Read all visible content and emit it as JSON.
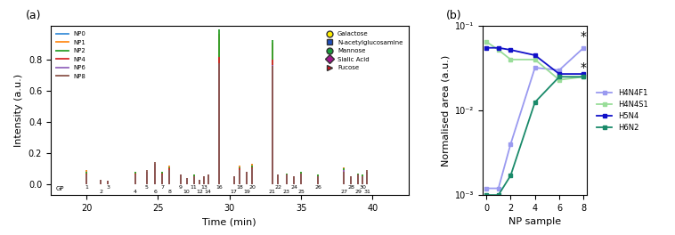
{
  "chart_data": [
    {
      "type": "stem",
      "panel_label": "(a)",
      "xlabel": "Time (min)",
      "ylabel": "Intensity (a.u.)",
      "x": [
        20.0,
        21.0,
        21.5,
        23.4,
        24.2,
        24.8,
        25.3,
        25.8,
        26.6,
        27.0,
        27.5,
        27.9,
        28.2,
        28.5,
        29.3,
        30.3,
        30.7,
        31.2,
        31.6,
        33.0,
        33.4,
        34.0,
        34.5,
        35.0,
        36.2,
        38.0,
        38.5,
        39.0,
        39.3,
        39.6
      ],
      "peak_labels": [
        "1",
        "2",
        "3",
        "4",
        "5",
        "6",
        "7",
        "8",
        "9",
        "10",
        "11",
        "12",
        "13",
        "14",
        "16",
        "17",
        "18",
        "19",
        "20",
        "21",
        "22",
        "23",
        "24",
        "25",
        "26",
        "27",
        "28",
        "29",
        "30",
        "31"
      ],
      "baseline_label": "GP",
      "series": [
        {
          "name": "NP0",
          "color": "#3a8fd9",
          "values": [
            0.09,
            0.03,
            0.02,
            0.08,
            0.07,
            0.12,
            0.08,
            0.12,
            0.05,
            0.04,
            0.06,
            0.03,
            0.05,
            0.05,
            0.96,
            0.04,
            0.12,
            0.07,
            0.13,
            0.9,
            0.05,
            0.07,
            0.05,
            0.08,
            0.06,
            0.11,
            0.05,
            0.07,
            0.06,
            0.07
          ]
        },
        {
          "name": "NP1",
          "color": "#ff8c1a",
          "values": [
            0.09,
            0.03,
            0.02,
            0.08,
            0.07,
            0.12,
            0.08,
            0.12,
            0.05,
            0.04,
            0.06,
            0.03,
            0.05,
            0.05,
            0.97,
            0.04,
            0.12,
            0.07,
            0.13,
            0.91,
            0.05,
            0.07,
            0.05,
            0.08,
            0.06,
            0.11,
            0.05,
            0.07,
            0.06,
            0.07
          ]
        },
        {
          "name": "NP2",
          "color": "#2ca02c",
          "values": [
            0.08,
            0.03,
            0.02,
            0.08,
            0.07,
            0.12,
            0.08,
            0.11,
            0.05,
            0.04,
            0.06,
            0.03,
            0.05,
            0.05,
            1.0,
            0.04,
            0.11,
            0.07,
            0.12,
            0.93,
            0.05,
            0.07,
            0.05,
            0.08,
            0.06,
            0.1,
            0.05,
            0.07,
            0.06,
            0.07
          ]
        },
        {
          "name": "NP4",
          "color": "#d62728",
          "values": [
            0.07,
            0.03,
            0.02,
            0.07,
            0.08,
            0.13,
            0.07,
            0.1,
            0.06,
            0.04,
            0.05,
            0.03,
            0.05,
            0.06,
            0.82,
            0.05,
            0.1,
            0.08,
            0.11,
            0.8,
            0.06,
            0.06,
            0.05,
            0.07,
            0.05,
            0.09,
            0.05,
            0.06,
            0.05,
            0.08
          ]
        },
        {
          "name": "NP6",
          "color": "#9467bd",
          "values": [
            0.06,
            0.03,
            0.02,
            0.06,
            0.08,
            0.13,
            0.06,
            0.09,
            0.06,
            0.04,
            0.05,
            0.03,
            0.05,
            0.06,
            0.78,
            0.05,
            0.09,
            0.08,
            0.1,
            0.77,
            0.06,
            0.06,
            0.05,
            0.07,
            0.05,
            0.09,
            0.05,
            0.06,
            0.05,
            0.08
          ]
        },
        {
          "name": "NP8",
          "color": "#8c564b",
          "values": [
            0.06,
            0.03,
            0.02,
            0.06,
            0.09,
            0.14,
            0.06,
            0.09,
            0.06,
            0.04,
            0.05,
            0.03,
            0.05,
            0.06,
            0.78,
            0.05,
            0.09,
            0.08,
            0.1,
            0.76,
            0.06,
            0.06,
            0.05,
            0.07,
            0.05,
            0.08,
            0.05,
            0.06,
            0.05,
            0.09
          ]
        }
      ],
      "xlim": [
        17.5,
        42.5
      ],
      "xticks": [
        20,
        25,
        30,
        35,
        40
      ],
      "ylim": [
        -0.07,
        1.02
      ],
      "yticks": [
        {
          "value": 0,
          "label": "0.0"
        },
        {
          "value": 0.2,
          "label": "0.2"
        },
        {
          "value": 0.4,
          "label": "0.4"
        },
        {
          "value": 0.6,
          "label": "0.6"
        },
        {
          "value": 0.8,
          "label": "0.8"
        }
      ],
      "legend": "upper left",
      "monosaccharide_key": [
        {
          "name": "Galactose",
          "color": "#ffee00",
          "marker": "circle"
        },
        {
          "name": "N-acetylglucosamine",
          "color": "#1f4fbf",
          "marker": "square"
        },
        {
          "name": "Mannose",
          "color": "#1a9a3a",
          "marker": "circle"
        },
        {
          "name": "Sialic Acid",
          "color": "#a0168c",
          "marker": "diamond"
        },
        {
          "name": "Fucose",
          "color": "#e0101a",
          "marker": "triangle"
        }
      ]
    },
    {
      "type": "line",
      "panel_label": "(b)",
      "xlabel": "NP sample",
      "ylabel": "Normalised area (a.u.)",
      "log": "y",
      "x": [
        0,
        1,
        2,
        4,
        6,
        8
      ],
      "series": [
        {
          "name": "H4N4F1",
          "color": "#9a9af0",
          "marker": "square",
          "line_style": "solid",
          "values": [
            0.0012,
            0.0012,
            0.004,
            0.032,
            0.03,
            0.055
          ]
        },
        {
          "name": "H4N4S1",
          "color": "#99dd99",
          "marker": "square",
          "line_style": "solid",
          "values": [
            0.065,
            0.052,
            0.04,
            0.04,
            0.023,
            0.025
          ]
        },
        {
          "name": "H5N4",
          "color": "#1010c8",
          "marker": "square",
          "line_style": "solid",
          "values": [
            0.055,
            0.055,
            0.052,
            0.045,
            0.027,
            0.027
          ]
        },
        {
          "name": "H6N2",
          "color": "#1a8a6a",
          "marker": "square",
          "line_style": "solid",
          "values": [
            0.001,
            0.001,
            0.0017,
            0.0125,
            0.025,
            0.025
          ]
        }
      ],
      "xlim": [
        -0.3,
        8.3
      ],
      "xticks": [
        0,
        2,
        4,
        6,
        8
      ],
      "ylim": [
        0.001,
        0.1
      ],
      "yticks": [
        {
          "value": 0.001,
          "label": "10⁻³"
        },
        {
          "value": 0.01,
          "label": "10⁻²"
        },
        {
          "value": 0.1,
          "label": "10⁻¹"
        }
      ],
      "legend": "right",
      "annotations": [
        {
          "text": "*",
          "x": 8,
          "y": 0.075
        },
        {
          "text": "*",
          "x": 8,
          "y": 0.032
        }
      ]
    }
  ]
}
